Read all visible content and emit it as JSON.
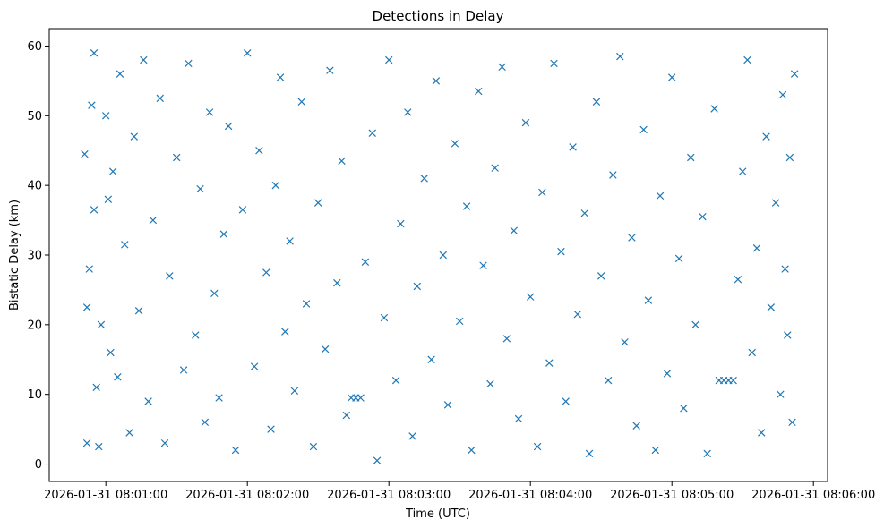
{
  "chart_data": {
    "type": "scatter",
    "title": "Detections in Delay",
    "xlabel": "Time (UTC)",
    "ylabel": "Bistatic Delay (km)",
    "marker": "x",
    "color": "#1f77b4",
    "xlim": [
      "2026-01-31 08:00:36",
      "2026-01-31 08:06:06"
    ],
    "ylim": [
      -2.5,
      62.5
    ],
    "x_ticks": [
      "2026-01-31 08:01:00",
      "2026-01-31 08:02:00",
      "2026-01-31 08:03:00",
      "2026-01-31 08:04:00",
      "2026-01-31 08:05:00",
      "2026-01-31 08:06:00"
    ],
    "y_ticks": [
      0,
      10,
      20,
      30,
      40,
      50,
      60
    ],
    "grid": false,
    "points": [
      {
        "x": "2026-01-31 08:00:51",
        "y": 44.5
      },
      {
        "x": "2026-01-31 08:00:52",
        "y": 3.0
      },
      {
        "x": "2026-01-31 08:00:52",
        "y": 22.5
      },
      {
        "x": "2026-01-31 08:00:53",
        "y": 28.0
      },
      {
        "x": "2026-01-31 08:00:54",
        "y": 51.5
      },
      {
        "x": "2026-01-31 08:00:55",
        "y": 59.0
      },
      {
        "x": "2026-01-31 08:00:55",
        "y": 36.5
      },
      {
        "x": "2026-01-31 08:00:56",
        "y": 11.0
      },
      {
        "x": "2026-01-31 08:00:57",
        "y": 2.5
      },
      {
        "x": "2026-01-31 08:00:58",
        "y": 20.0
      },
      {
        "x": "2026-01-31 08:01:00",
        "y": 50.0
      },
      {
        "x": "2026-01-31 08:01:01",
        "y": 38.0
      },
      {
        "x": "2026-01-31 08:01:02",
        "y": 16.0
      },
      {
        "x": "2026-01-31 08:01:03",
        "y": 42.0
      },
      {
        "x": "2026-01-31 08:01:05",
        "y": 12.5
      },
      {
        "x": "2026-01-31 08:01:06",
        "y": 56.0
      },
      {
        "x": "2026-01-31 08:01:08",
        "y": 31.5
      },
      {
        "x": "2026-01-31 08:01:10",
        "y": 4.5
      },
      {
        "x": "2026-01-31 08:01:12",
        "y": 47.0
      },
      {
        "x": "2026-01-31 08:01:14",
        "y": 22.0
      },
      {
        "x": "2026-01-31 08:01:16",
        "y": 58.0
      },
      {
        "x": "2026-01-31 08:01:18",
        "y": 9.0
      },
      {
        "x": "2026-01-31 08:01:20",
        "y": 35.0
      },
      {
        "x": "2026-01-31 08:01:23",
        "y": 52.5
      },
      {
        "x": "2026-01-31 08:01:25",
        "y": 3.0
      },
      {
        "x": "2026-01-31 08:01:27",
        "y": 27.0
      },
      {
        "x": "2026-01-31 08:01:30",
        "y": 44.0
      },
      {
        "x": "2026-01-31 08:01:33",
        "y": 13.5
      },
      {
        "x": "2026-01-31 08:01:35",
        "y": 57.5
      },
      {
        "x": "2026-01-31 08:01:38",
        "y": 18.5
      },
      {
        "x": "2026-01-31 08:01:40",
        "y": 39.5
      },
      {
        "x": "2026-01-31 08:01:42",
        "y": 6.0
      },
      {
        "x": "2026-01-31 08:01:44",
        "y": 50.5
      },
      {
        "x": "2026-01-31 08:01:46",
        "y": 24.5
      },
      {
        "x": "2026-01-31 08:01:48",
        "y": 9.5
      },
      {
        "x": "2026-01-31 08:01:50",
        "y": 33.0
      },
      {
        "x": "2026-01-31 08:01:52",
        "y": 48.5
      },
      {
        "x": "2026-01-31 08:01:55",
        "y": 2.0
      },
      {
        "x": "2026-01-31 08:01:58",
        "y": 36.5
      },
      {
        "x": "2026-01-31 08:02:00",
        "y": 59.0
      },
      {
        "x": "2026-01-31 08:02:03",
        "y": 14.0
      },
      {
        "x": "2026-01-31 08:02:05",
        "y": 45.0
      },
      {
        "x": "2026-01-31 08:02:08",
        "y": 27.5
      },
      {
        "x": "2026-01-31 08:02:10",
        "y": 5.0
      },
      {
        "x": "2026-01-31 08:02:12",
        "y": 40.0
      },
      {
        "x": "2026-01-31 08:02:14",
        "y": 55.5
      },
      {
        "x": "2026-01-31 08:02:16",
        "y": 19.0
      },
      {
        "x": "2026-01-31 08:02:18",
        "y": 32.0
      },
      {
        "x": "2026-01-31 08:02:20",
        "y": 10.5
      },
      {
        "x": "2026-01-31 08:02:23",
        "y": 52.0
      },
      {
        "x": "2026-01-31 08:02:25",
        "y": 23.0
      },
      {
        "x": "2026-01-31 08:02:28",
        "y": 2.5
      },
      {
        "x": "2026-01-31 08:02:30",
        "y": 37.5
      },
      {
        "x": "2026-01-31 08:02:33",
        "y": 16.5
      },
      {
        "x": "2026-01-31 08:02:35",
        "y": 56.5
      },
      {
        "x": "2026-01-31 08:02:38",
        "y": 26.0
      },
      {
        "x": "2026-01-31 08:02:40",
        "y": 43.5
      },
      {
        "x": "2026-01-31 08:02:42",
        "y": 7.0
      },
      {
        "x": "2026-01-31 08:02:44",
        "y": 9.5
      },
      {
        "x": "2026-01-31 08:02:46",
        "y": 9.5
      },
      {
        "x": "2026-01-31 08:02:48",
        "y": 9.5
      },
      {
        "x": "2026-01-31 08:02:50",
        "y": 29.0
      },
      {
        "x": "2026-01-31 08:02:53",
        "y": 47.5
      },
      {
        "x": "2026-01-31 08:02:55",
        "y": 0.5
      },
      {
        "x": "2026-01-31 08:02:58",
        "y": 21.0
      },
      {
        "x": "2026-01-31 08:03:00",
        "y": 58.0
      },
      {
        "x": "2026-01-31 08:03:03",
        "y": 12.0
      },
      {
        "x": "2026-01-31 08:03:05",
        "y": 34.5
      },
      {
        "x": "2026-01-31 08:03:08",
        "y": 50.5
      },
      {
        "x": "2026-01-31 08:03:10",
        "y": 4.0
      },
      {
        "x": "2026-01-31 08:03:12",
        "y": 25.5
      },
      {
        "x": "2026-01-31 08:03:15",
        "y": 41.0
      },
      {
        "x": "2026-01-31 08:03:18",
        "y": 15.0
      },
      {
        "x": "2026-01-31 08:03:20",
        "y": 55.0
      },
      {
        "x": "2026-01-31 08:03:23",
        "y": 30.0
      },
      {
        "x": "2026-01-31 08:03:25",
        "y": 8.5
      },
      {
        "x": "2026-01-31 08:03:28",
        "y": 46.0
      },
      {
        "x": "2026-01-31 08:03:30",
        "y": 20.5
      },
      {
        "x": "2026-01-31 08:03:33",
        "y": 37.0
      },
      {
        "x": "2026-01-31 08:03:35",
        "y": 2.0
      },
      {
        "x": "2026-01-31 08:03:38",
        "y": 53.5
      },
      {
        "x": "2026-01-31 08:03:40",
        "y": 28.5
      },
      {
        "x": "2026-01-31 08:03:43",
        "y": 11.5
      },
      {
        "x": "2026-01-31 08:03:45",
        "y": 42.5
      },
      {
        "x": "2026-01-31 08:03:48",
        "y": 57.0
      },
      {
        "x": "2026-01-31 08:03:50",
        "y": 18.0
      },
      {
        "x": "2026-01-31 08:03:53",
        "y": 33.5
      },
      {
        "x": "2026-01-31 08:03:55",
        "y": 6.5
      },
      {
        "x": "2026-01-31 08:03:58",
        "y": 49.0
      },
      {
        "x": "2026-01-31 08:04:00",
        "y": 24.0
      },
      {
        "x": "2026-01-31 08:04:03",
        "y": 2.5
      },
      {
        "x": "2026-01-31 08:04:05",
        "y": 39.0
      },
      {
        "x": "2026-01-31 08:04:08",
        "y": 14.5
      },
      {
        "x": "2026-01-31 08:04:10",
        "y": 57.5
      },
      {
        "x": "2026-01-31 08:04:13",
        "y": 30.5
      },
      {
        "x": "2026-01-31 08:04:15",
        "y": 9.0
      },
      {
        "x": "2026-01-31 08:04:18",
        "y": 45.5
      },
      {
        "x": "2026-01-31 08:04:20",
        "y": 21.5
      },
      {
        "x": "2026-01-31 08:04:23",
        "y": 36.0
      },
      {
        "x": "2026-01-31 08:04:25",
        "y": 1.5
      },
      {
        "x": "2026-01-31 08:04:28",
        "y": 52.0
      },
      {
        "x": "2026-01-31 08:04:30",
        "y": 27.0
      },
      {
        "x": "2026-01-31 08:04:33",
        "y": 12.0
      },
      {
        "x": "2026-01-31 08:04:35",
        "y": 41.5
      },
      {
        "x": "2026-01-31 08:04:38",
        "y": 58.5
      },
      {
        "x": "2026-01-31 08:04:40",
        "y": 17.5
      },
      {
        "x": "2026-01-31 08:04:43",
        "y": 32.5
      },
      {
        "x": "2026-01-31 08:04:45",
        "y": 5.5
      },
      {
        "x": "2026-01-31 08:04:48",
        "y": 48.0
      },
      {
        "x": "2026-01-31 08:04:50",
        "y": 23.5
      },
      {
        "x": "2026-01-31 08:04:53",
        "y": 2.0
      },
      {
        "x": "2026-01-31 08:04:55",
        "y": 38.5
      },
      {
        "x": "2026-01-31 08:04:58",
        "y": 13.0
      },
      {
        "x": "2026-01-31 08:05:00",
        "y": 55.5
      },
      {
        "x": "2026-01-31 08:05:03",
        "y": 29.5
      },
      {
        "x": "2026-01-31 08:05:05",
        "y": 8.0
      },
      {
        "x": "2026-01-31 08:05:08",
        "y": 44.0
      },
      {
        "x": "2026-01-31 08:05:10",
        "y": 20.0
      },
      {
        "x": "2026-01-31 08:05:13",
        "y": 35.5
      },
      {
        "x": "2026-01-31 08:05:15",
        "y": 1.5
      },
      {
        "x": "2026-01-31 08:05:18",
        "y": 51.0
      },
      {
        "x": "2026-01-31 08:05:20",
        "y": 12.0
      },
      {
        "x": "2026-01-31 08:05:22",
        "y": 12.0
      },
      {
        "x": "2026-01-31 08:05:24",
        "y": 12.0
      },
      {
        "x": "2026-01-31 08:05:26",
        "y": 12.0
      },
      {
        "x": "2026-01-31 08:05:28",
        "y": 26.5
      },
      {
        "x": "2026-01-31 08:05:30",
        "y": 42.0
      },
      {
        "x": "2026-01-31 08:05:32",
        "y": 58.0
      },
      {
        "x": "2026-01-31 08:05:34",
        "y": 16.0
      },
      {
        "x": "2026-01-31 08:05:36",
        "y": 31.0
      },
      {
        "x": "2026-01-31 08:05:38",
        "y": 4.5
      },
      {
        "x": "2026-01-31 08:05:40",
        "y": 47.0
      },
      {
        "x": "2026-01-31 08:05:42",
        "y": 22.5
      },
      {
        "x": "2026-01-31 08:05:44",
        "y": 37.5
      },
      {
        "x": "2026-01-31 08:05:46",
        "y": 10.0
      },
      {
        "x": "2026-01-31 08:05:47",
        "y": 53.0
      },
      {
        "x": "2026-01-31 08:05:48",
        "y": 28.0
      },
      {
        "x": "2026-01-31 08:05:49",
        "y": 18.5
      },
      {
        "x": "2026-01-31 08:05:50",
        "y": 44.0
      },
      {
        "x": "2026-01-31 08:05:51",
        "y": 6.0
      },
      {
        "x": "2026-01-31 08:05:52",
        "y": 56.0
      }
    ]
  }
}
